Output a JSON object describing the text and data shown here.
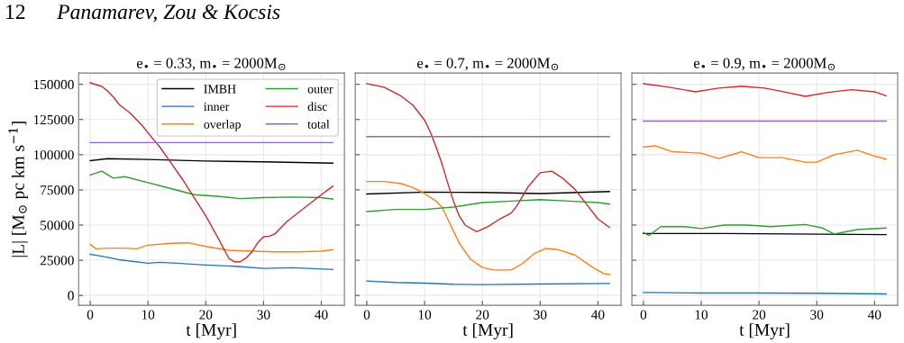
{
  "chart_data": [
    {
      "type": "line",
      "title": "e$_{•}$ = 0.33, m$_{•}$ = 2000M$_{⊙}$",
      "xlabel": "t [Myr]",
      "ylabel": "|L| [M$_{⊙}$ pc km s$^{−1}$]",
      "annotations": [
        "12",
        "Panamarev, Zou & Kocsis"
      ],
      "xlim": [
        -2,
        44
      ],
      "ylim": [
        -7000,
        158000
      ],
      "xticks": [
        0,
        10,
        20,
        30,
        40
      ],
      "yticks": [
        0,
        25000,
        50000,
        75000,
        100000,
        125000,
        150000
      ],
      "grid": true,
      "legend": "top right",
      "series": [
        {
          "name": "IMBH",
          "color": "#000000",
          "x": [
            0,
            3,
            10,
            20,
            30,
            42
          ],
          "values": [
            95700,
            97200,
            96600,
            95500,
            94900,
            94000
          ]
        },
        {
          "name": "inner",
          "color": "#1f77b4",
          "x": [
            0,
            2,
            5,
            10,
            12,
            15,
            20,
            25,
            30,
            35,
            42
          ],
          "values": [
            29300,
            27800,
            25400,
            22900,
            23500,
            22900,
            21600,
            20700,
            19200,
            19700,
            18400
          ]
        },
        {
          "name": "overlap",
          "color": "#ff7f0e",
          "x": [
            0,
            1,
            3,
            6,
            8,
            10,
            14,
            17,
            20,
            24,
            28,
            32,
            36,
            40,
            42
          ],
          "values": [
            36300,
            33100,
            33600,
            33600,
            33100,
            35700,
            37000,
            37400,
            34800,
            32100,
            31400,
            31000,
            31000,
            31400,
            32500
          ]
        },
        {
          "name": "outer",
          "color": "#2ca02c",
          "x": [
            0,
            2,
            4,
            6,
            10,
            14,
            18,
            22,
            26,
            30,
            35,
            40,
            42
          ],
          "values": [
            85500,
            88300,
            83300,
            84400,
            80100,
            75900,
            71600,
            70500,
            68800,
            69500,
            69900,
            69500,
            68400
          ]
        },
        {
          "name": "disc",
          "color": "#d62728",
          "x": [
            0,
            2,
            3,
            4,
            5,
            7,
            9,
            11,
            12,
            14,
            16,
            18,
            20,
            22,
            24,
            25,
            26,
            27,
            28,
            29,
            30,
            31,
            32,
            34,
            36,
            38,
            40,
            42
          ],
          "values": [
            151100,
            148500,
            145300,
            141000,
            135700,
            129300,
            120700,
            110500,
            105800,
            94000,
            82300,
            69500,
            56600,
            41700,
            26300,
            23900,
            23900,
            26700,
            31000,
            37400,
            41700,
            42100,
            43800,
            52400,
            58800,
            65200,
            71600,
            77600
          ]
        },
        {
          "name": "total",
          "color": "#9467bd",
          "x": [
            0,
            42
          ],
          "values": [
            108600,
            108600
          ]
        }
      ]
    },
    {
      "type": "line",
      "title": "e$_{•}$ = 0.7, m$_{•}$ = 2000M$_{⊙}$",
      "xlabel": "t [Myr]",
      "xlim": [
        -2,
        44
      ],
      "ylim": [
        -7000,
        158000
      ],
      "xticks": [
        0,
        10,
        20,
        30,
        40
      ],
      "yticks": [
        0,
        25000,
        50000,
        75000,
        100000,
        125000,
        150000
      ],
      "grid": true,
      "tick_labels": "x",
      "series": [
        {
          "color": "#000000",
          "x": [
            0,
            10,
            20,
            30,
            42
          ],
          "values": [
            72100,
            73400,
            73200,
            72400,
            73800
          ]
        },
        {
          "color": "#1f77b4",
          "x": [
            0,
            5,
            10,
            15,
            20,
            30,
            42
          ],
          "values": [
            10200,
            9200,
            8700,
            7900,
            7700,
            8100,
            8500
          ]
        },
        {
          "color": "#ff7f0e",
          "x": [
            0,
            3,
            6,
            8,
            10,
            12,
            13,
            14,
            16,
            18,
            20,
            22,
            25,
            27,
            29,
            31,
            33,
            36,
            39,
            41,
            42
          ],
          "values": [
            80900,
            80900,
            79400,
            76600,
            72400,
            67000,
            62800,
            54300,
            37200,
            25500,
            19800,
            18100,
            18100,
            22800,
            29800,
            33400,
            32600,
            28700,
            20200,
            15500,
            14900
          ]
        },
        {
          "color": "#2ca02c",
          "x": [
            0,
            5,
            10,
            15,
            20,
            25,
            30,
            35,
            40,
            42
          ],
          "values": [
            59600,
            61100,
            61100,
            62800,
            66000,
            67000,
            68100,
            67000,
            66000,
            64900
          ]
        },
        {
          "color": "#d62728",
          "x": [
            0,
            3,
            6,
            8,
            10,
            11,
            12,
            13,
            14,
            15,
            16,
            17,
            19,
            21,
            23,
            25,
            26,
            28,
            30,
            32,
            34,
            36,
            38,
            40,
            42
          ],
          "values": [
            150400,
            147900,
            141500,
            135100,
            124500,
            116000,
            105300,
            93600,
            79800,
            67000,
            56400,
            50000,
            45300,
            48900,
            54300,
            58500,
            63800,
            77700,
            87200,
            88300,
            83000,
            75500,
            64900,
            54300,
            48300
          ]
        },
        {
          "color": "#9467bd",
          "x": [
            0,
            42
          ],
          "values": [
            112800,
            112800
          ]
        }
      ]
    },
    {
      "type": "line",
      "title": "e$_{•}$ = 0.9, m$_{•}$ = 2000M$_{⊙}$",
      "xlabel": "t [Myr]",
      "xlim": [
        -2,
        44
      ],
      "ylim": [
        -7000,
        158000
      ],
      "xticks": [
        0,
        10,
        20,
        30,
        40
      ],
      "yticks": [
        0,
        25000,
        50000,
        75000,
        100000,
        125000,
        150000
      ],
      "grid": true,
      "tick_labels": "x",
      "series": [
        {
          "color": "#000000",
          "x": [
            0,
            14,
            42
          ],
          "values": [
            44000,
            44000,
            43200
          ]
        },
        {
          "color": "#1f77b4",
          "x": [
            0,
            10,
            20,
            30,
            42
          ],
          "values": [
            2100,
            1700,
            1700,
            1500,
            1100
          ]
        },
        {
          "color": "#ff7f0e",
          "x": [
            0,
            2,
            5,
            10,
            13,
            17,
            20,
            24,
            28,
            30,
            33,
            37,
            40,
            42
          ],
          "values": [
            105300,
            106400,
            102100,
            101100,
            97300,
            102100,
            97900,
            97900,
            94700,
            94700,
            100000,
            103200,
            99000,
            96800
          ]
        },
        {
          "color": "#2ca02c",
          "x": [
            0,
            1,
            3,
            7,
            10,
            14,
            18,
            22,
            28,
            31,
            33,
            37,
            42
          ],
          "values": [
            44700,
            42600,
            48900,
            48900,
            47500,
            50000,
            50000,
            48900,
            50400,
            47900,
            43600,
            46800,
            47900
          ]
        },
        {
          "color": "#d62728",
          "x": [
            0,
            4,
            9,
            13,
            17,
            21,
            25,
            28,
            32,
            36,
            40,
            42
          ],
          "values": [
            150400,
            148300,
            144700,
            147300,
            148700,
            147300,
            144100,
            141500,
            144300,
            146200,
            144700,
            141900
          ]
        },
        {
          "color": "#9467bd",
          "x": [
            0,
            42
          ],
          "values": [
            123900,
            123900
          ]
        }
      ]
    }
  ]
}
